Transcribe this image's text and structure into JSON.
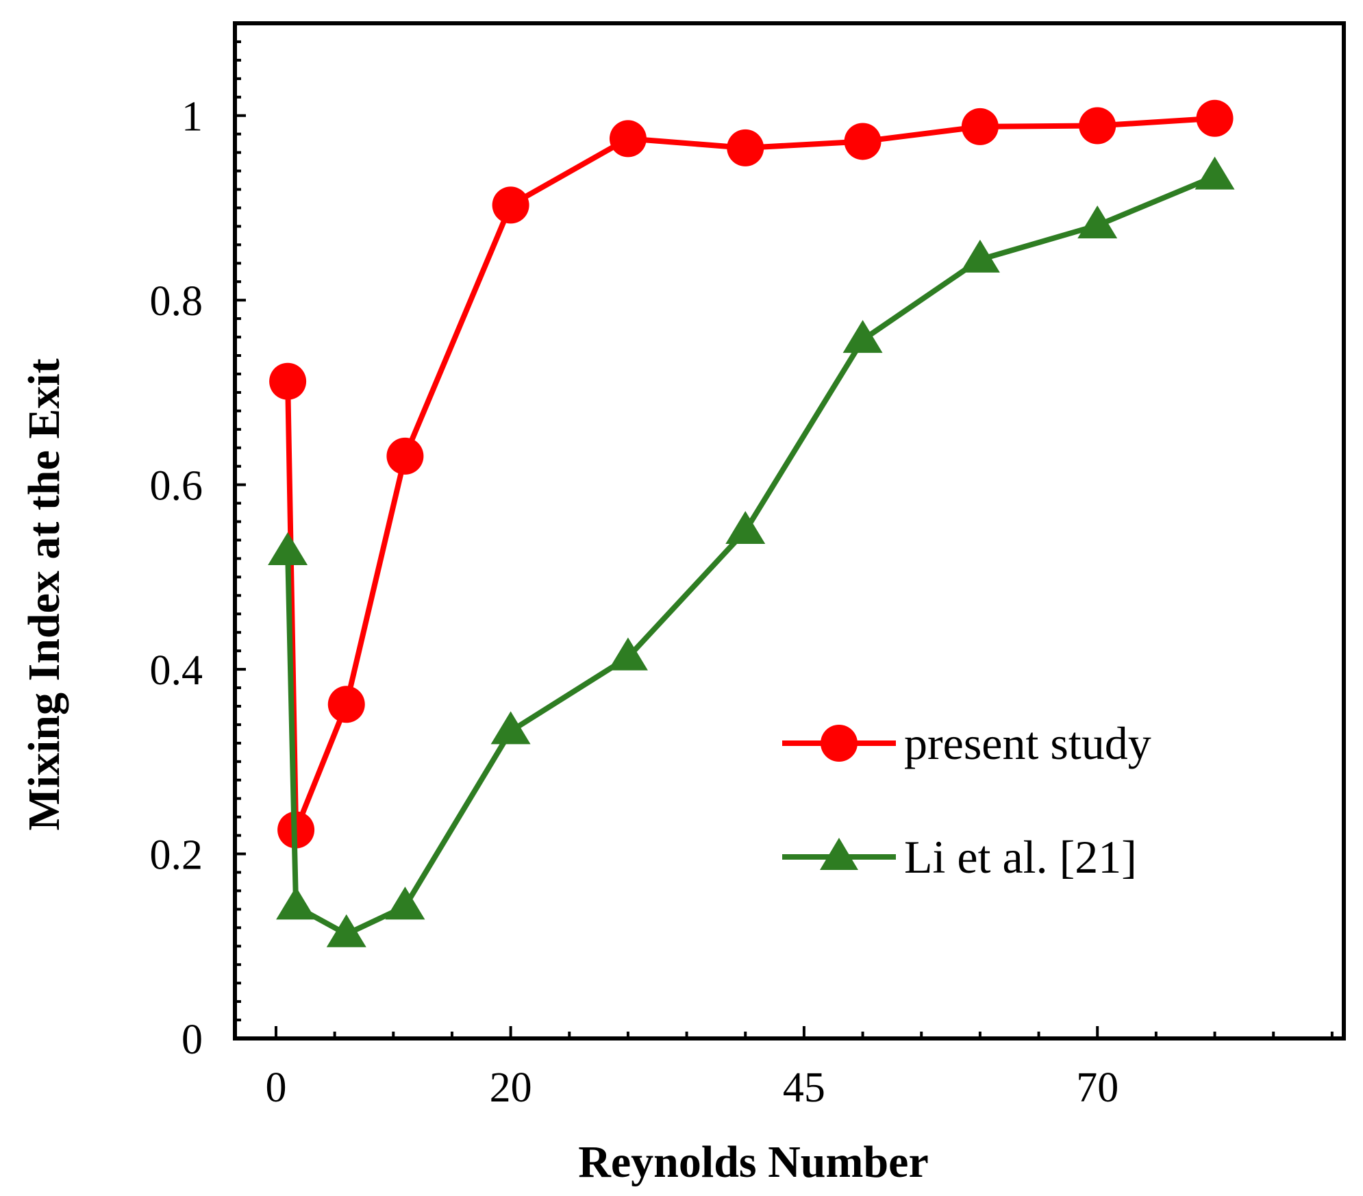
{
  "chart_data": {
    "type": "line",
    "title": "",
    "xlabel": "Reynolds Number",
    "ylabel": "Mixing Index at the Exit",
    "xlim": [
      -3.5,
      91
    ],
    "ylim": [
      0,
      1.1
    ],
    "xticks": [
      0,
      20,
      45,
      70
    ],
    "yticks": [
      0,
      0.2,
      0.4,
      0.6,
      0.8,
      1
    ],
    "ytick_labels": [
      "0",
      "0.2",
      "0.4",
      "0.6",
      "0.8",
      "1"
    ],
    "xtick_labels": [
      "0",
      "20",
      "45",
      "70"
    ],
    "grid": false,
    "legend_position": "center-right",
    "series": [
      {
        "name": "present study",
        "color": "#ff0000",
        "marker": "circle",
        "x": [
          1,
          1.7,
          6,
          11,
          20,
          30,
          40,
          50,
          60,
          70,
          80
        ],
        "y": [
          0.712,
          0.226,
          0.362,
          0.631,
          0.903,
          0.975,
          0.965,
          0.972,
          0.988,
          0.989,
          0.997
        ]
      },
      {
        "name": "Li et al. [21]",
        "color": "#2e7d22",
        "marker": "triangle",
        "x": [
          1,
          1.7,
          6,
          11,
          20,
          30,
          40,
          50,
          60,
          70,
          80
        ],
        "y": [
          0.527,
          0.143,
          0.113,
          0.143,
          0.333,
          0.413,
          0.55,
          0.757,
          0.844,
          0.881,
          0.934
        ]
      }
    ]
  }
}
